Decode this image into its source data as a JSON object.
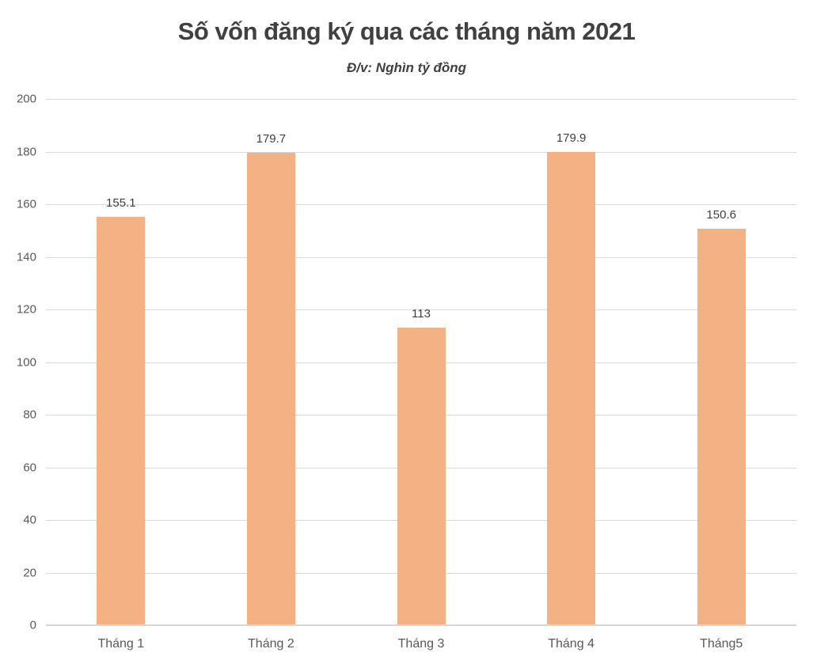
{
  "colors": {
    "bar": "#F4B183",
    "title_text": "#404040",
    "axis_text": "#595959",
    "value_label_text": "#3F3F3F",
    "gridline": "#D9D9D9",
    "axis_line": "#D6D6D6",
    "background": "#FFFFFF"
  },
  "chart_data": {
    "type": "bar",
    "title": "Số vốn đăng ký qua các tháng năm 2021",
    "subtitle": "Đ/v: Nghìn tỷ đồng",
    "categories": [
      "Tháng 1",
      "Tháng 2",
      "Tháng 3",
      "Tháng 4",
      "Tháng5"
    ],
    "values": [
      155.1,
      179.7,
      113,
      179.9,
      150.6
    ],
    "value_labels": [
      "155.1",
      "179.7",
      "113",
      "179.9",
      "150.6"
    ],
    "xlabel": "",
    "ylabel": "",
    "ylim": [
      0,
      200
    ],
    "ytick_step": 20,
    "ytick_labels": [
      "0",
      "20",
      "40",
      "60",
      "80",
      "100",
      "120",
      "140",
      "160",
      "180",
      "200"
    ],
    "grid": true,
    "legend": false,
    "data_labels_position": "above-bar"
  }
}
